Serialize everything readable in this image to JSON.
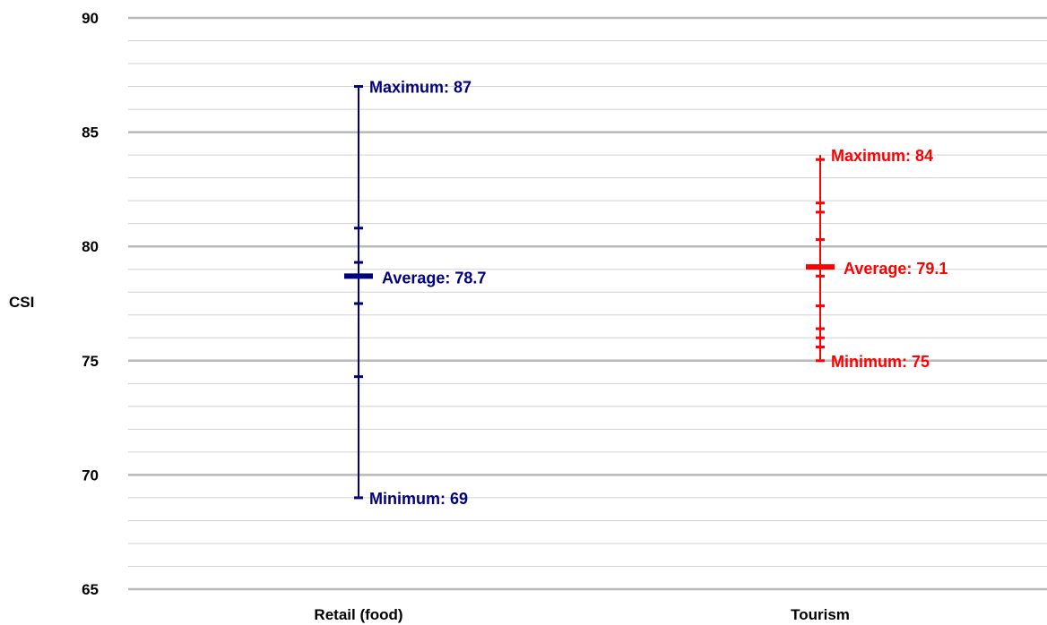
{
  "chart_data": {
    "type": "range",
    "ylabel": "CSI",
    "ylim": [
      65,
      90
    ],
    "yticks": [
      65,
      70,
      75,
      80,
      85,
      90
    ],
    "minor_grid_step": 1,
    "grid": true,
    "categories": [
      "Retail (food)",
      "Tourism"
    ],
    "series": [
      {
        "category": "Retail (food)",
        "color": "#000080",
        "maximum": 87,
        "minimum": 69,
        "average": 78.7,
        "individual_values": [
          87,
          80.8,
          79.3,
          78.7,
          77.5,
          74.3,
          69
        ],
        "max_label": "Maximum: 87",
        "avg_label": "Average: 78.7",
        "min_label": "Minimum: 69"
      },
      {
        "category": "Tourism",
        "color": "#ff0000",
        "maximum": 84,
        "minimum": 75,
        "average": 79.1,
        "individual_values": [
          83.8,
          81.9,
          81.5,
          80.3,
          79.1,
          78.7,
          77.4,
          76.4,
          76.0,
          75.6,
          75
        ],
        "max_label": "Maximum: 84",
        "avg_label": "Average: 79.1",
        "min_label": "Minimum: 75"
      }
    ]
  }
}
